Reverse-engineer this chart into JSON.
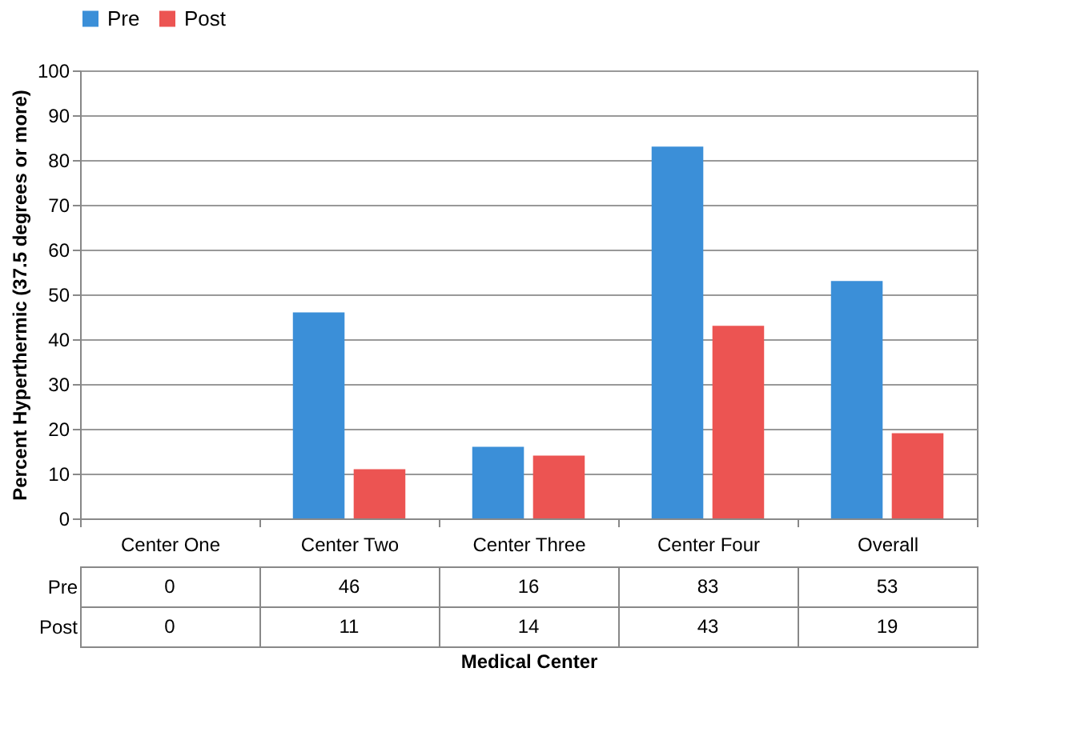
{
  "chart_data": {
    "type": "bar",
    "xlabel": "Medical Center",
    "ylabel": "Percent  Hyperthermic (37.5 degrees or more)",
    "categories": [
      "Center One",
      "Center Two",
      "Center Three",
      "Center Four",
      "Overall"
    ],
    "series": [
      {
        "name": "Pre",
        "color": "#3b8fd8",
        "values": [
          0,
          46,
          16,
          83,
          53
        ]
      },
      {
        "name": "Post",
        "color": "#ec5452",
        "values": [
          0,
          11,
          14,
          43,
          19
        ]
      }
    ],
    "ylim": [
      0,
      100
    ],
    "yticks": [
      0,
      10,
      20,
      30,
      40,
      50,
      60,
      70,
      80,
      90,
      100
    ],
    "grid": "y",
    "legend": "top",
    "data_labels": true
  }
}
